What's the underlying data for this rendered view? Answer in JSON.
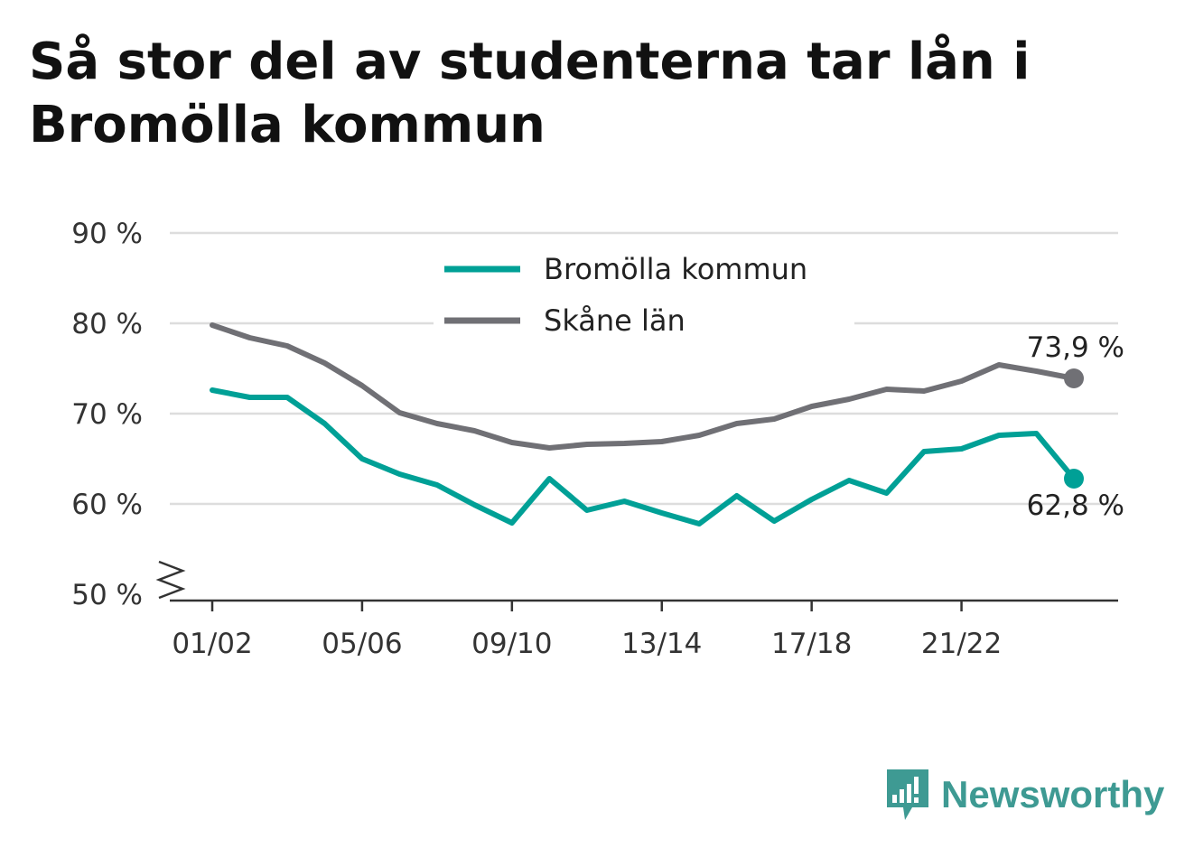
{
  "title": "Så stor del av studenterna tar lån i Bromölla kommun",
  "brand": "Newsworthy",
  "colors": {
    "accent": "#00a096",
    "secondary": "#707075",
    "brand": "#3e9a93"
  },
  "chart_data": {
    "type": "line",
    "title": "Så stor del av studenterna tar lån i Bromölla kommun",
    "xlabel": "",
    "ylabel": "",
    "ylim": [
      50,
      90
    ],
    "y_ticks": [
      {
        "value": 50,
        "label": "50 %"
      },
      {
        "value": 60,
        "label": "60 %"
      },
      {
        "value": 70,
        "label": "70 %"
      },
      {
        "value": 80,
        "label": "80 %"
      },
      {
        "value": 90,
        "label": "90 %"
      }
    ],
    "y_axis_break": true,
    "x": [
      "01/02",
      "02/03",
      "03/04",
      "04/05",
      "05/06",
      "06/07",
      "07/08",
      "08/09",
      "09/10",
      "10/11",
      "11/12",
      "12/13",
      "13/14",
      "14/15",
      "15/16",
      "16/17",
      "17/18",
      "18/19",
      "19/20",
      "20/21",
      "21/22",
      "22/23",
      "23/24",
      "24/25"
    ],
    "x_tick_labels": [
      "01/02",
      "05/06",
      "09/10",
      "13/14",
      "17/18",
      "21/22"
    ],
    "grid": true,
    "legend_position": "top-center",
    "series": [
      {
        "name": "Bromölla kommun",
        "color": "#00a096",
        "values": [
          72.6,
          71.8,
          71.8,
          68.9,
          65.0,
          63.3,
          62.1,
          59.9,
          57.9,
          62.8,
          59.3,
          60.3,
          59.0,
          57.8,
          60.9,
          58.1,
          60.5,
          62.6,
          61.2,
          65.8,
          66.1,
          67.6,
          67.8,
          62.8
        ],
        "end_label": "62,8 %"
      },
      {
        "name": "Skåne län",
        "color": "#707075",
        "values": [
          79.8,
          78.4,
          77.5,
          75.6,
          73.1,
          70.1,
          68.9,
          68.1,
          66.8,
          66.2,
          66.6,
          66.7,
          66.9,
          67.6,
          68.9,
          69.4,
          70.8,
          71.6,
          72.7,
          72.5,
          73.6,
          75.4,
          74.7,
          73.9
        ],
        "end_label": "73,9 %"
      }
    ]
  }
}
